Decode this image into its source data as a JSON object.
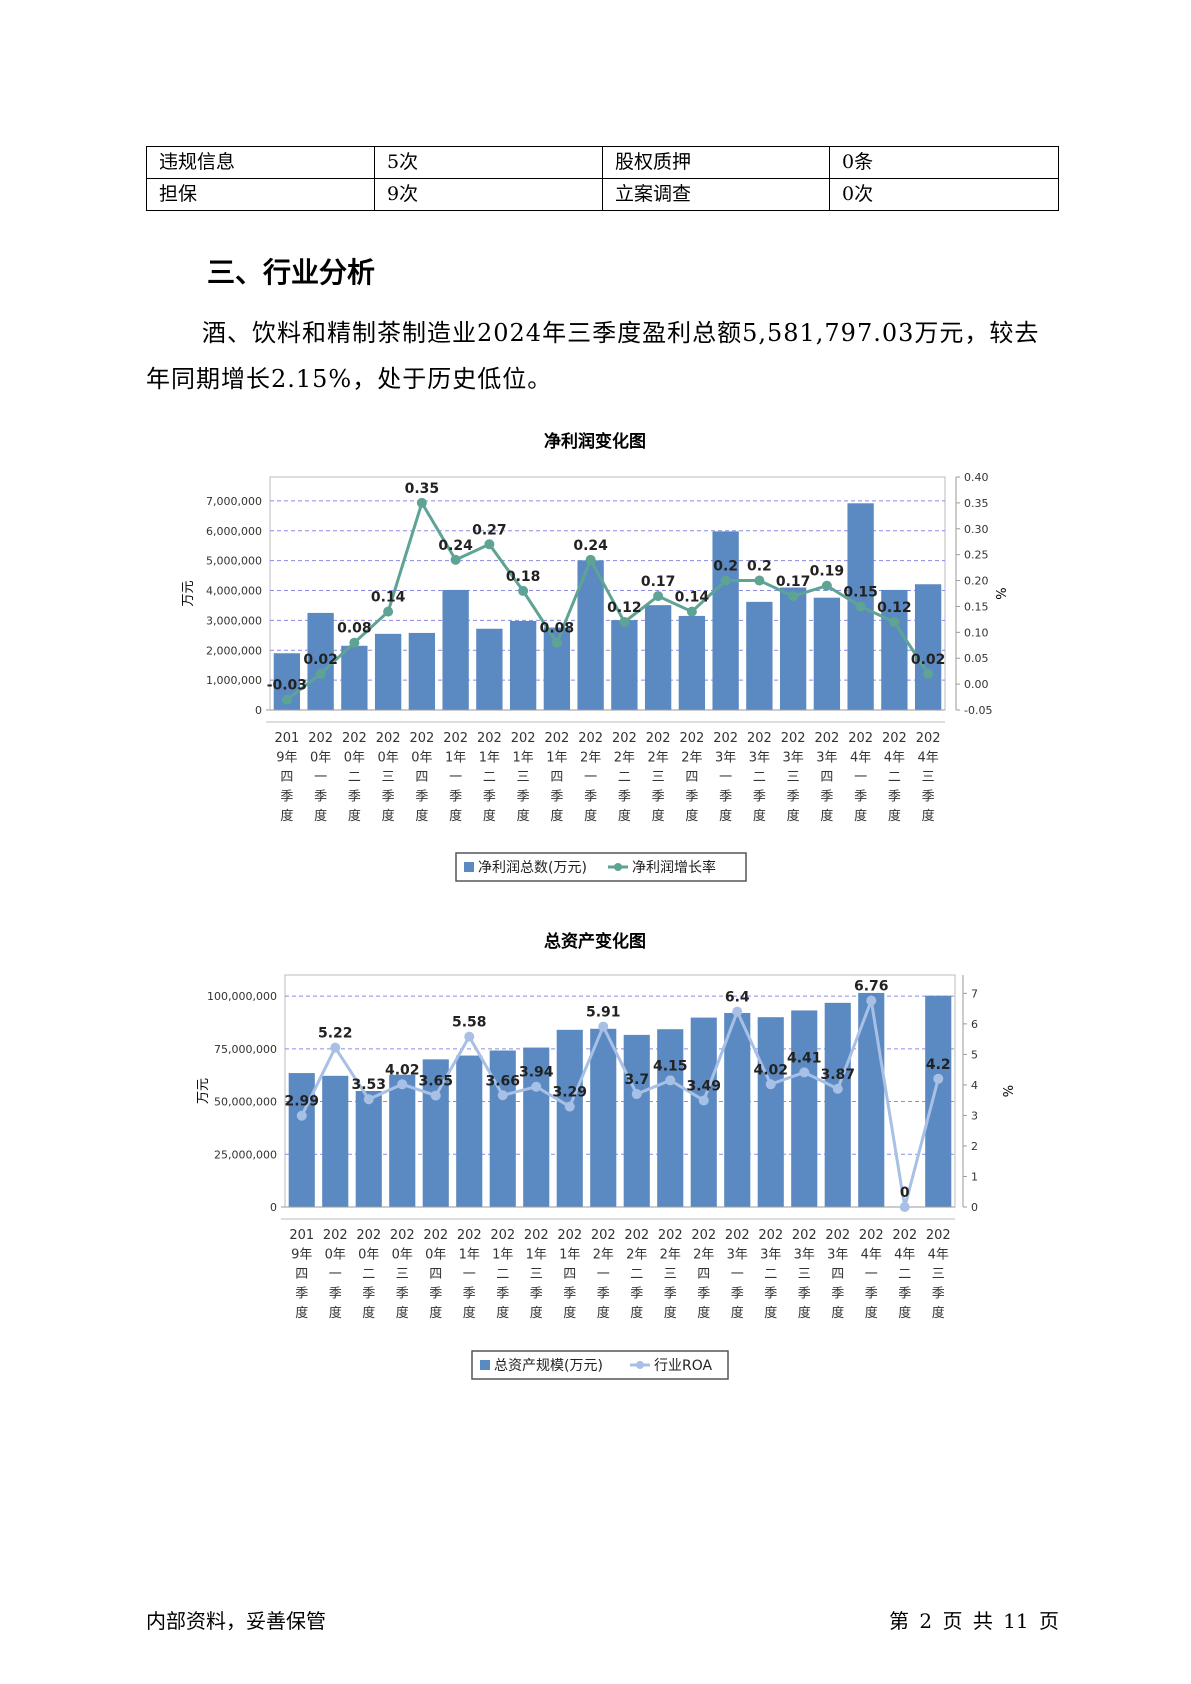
{
  "table": {
    "rows": [
      [
        "违规信息",
        "5次",
        "股权质押",
        "0条"
      ],
      [
        "担保",
        "9次",
        "立案调查",
        "0次"
      ]
    ]
  },
  "section_title": "三、行业分析",
  "paragraph": "酒、饮料和精制茶制造业2024年三季度盈利总额5,581,797.03万元，较去年同期增长2.15%，处于历史低位。",
  "footer": {
    "left": "内部资料，妥善保管",
    "right": "第 2 页  共 11 页"
  },
  "colors": {
    "bar": "#5b8ac2",
    "line1": "#5ea394",
    "line2": "#a8c0e6"
  },
  "chart_data": [
    {
      "type": "bar",
      "title": "净利润变化图",
      "ylabel": "万元",
      "y2label": "%",
      "ylim": [
        0,
        7800000
      ],
      "y2lim": [
        -0.05,
        0.4
      ],
      "yticks": [
        "0",
        "1,000,000",
        "2,000,000",
        "3,000,000",
        "4,000,000",
        "5,000,000",
        "6,000,000",
        "7,000,000"
      ],
      "y2ticks": [
        "-0.05",
        "0.00",
        "0.05",
        "0.10",
        "0.15",
        "0.20",
        "0.25",
        "0.30",
        "0.35",
        "0.40"
      ],
      "categories": [
        "2019年四季度",
        "2020年一季度",
        "2020年二季度",
        "2020年三季度",
        "2020年四季度",
        "2021年一季度",
        "2021年二季度",
        "2021年三季度",
        "2021年四季度",
        "2022年一季度",
        "2022年二季度",
        "2022年三季度",
        "2022年四季度",
        "2023年一季度",
        "2023年二季度",
        "2023年三季度",
        "2023年四季度",
        "2024年一季度",
        "2024年二季度",
        "2024年三季度"
      ],
      "series": [
        {
          "name": "净利润总数(万元)",
          "kind": "bar",
          "values": [
            1900000,
            3250000,
            2150000,
            2550000,
            2580000,
            4020000,
            2720000,
            2980000,
            2760000,
            5010000,
            3010000,
            3510000,
            3150000,
            5980000,
            3620000,
            4100000,
            3760000,
            6920000,
            4020000,
            4210000
          ]
        },
        {
          "name": "净利润增长率",
          "kind": "line",
          "values": [
            -0.03,
            0.02,
            0.08,
            0.14,
            0.35,
            0.24,
            0.27,
            0.18,
            0.08,
            0.24,
            0.12,
            0.17,
            0.14,
            0.2,
            0.2,
            0.17,
            0.19,
            0.15,
            0.12,
            0.02
          ]
        }
      ]
    },
    {
      "type": "bar",
      "title": "总资产变化图",
      "ylabel": "万元",
      "y2label": "%",
      "ylim": [
        0,
        110000000
      ],
      "y2lim": [
        0,
        7.6
      ],
      "yticks": [
        "0",
        "25,000,000",
        "50,000,000",
        "75,000,000",
        "100,000,000"
      ],
      "y2ticks": [
        "0",
        "1",
        "2",
        "3",
        "4",
        "5",
        "6",
        "7"
      ],
      "categories": [
        "2019年四季度",
        "2020年一季度",
        "2020年二季度",
        "2020年三季度",
        "2020年四季度",
        "2021年一季度",
        "2021年二季度",
        "2021年三季度",
        "2021年四季度",
        "2022年一季度",
        "2022年二季度",
        "2022年三季度",
        "2022年四季度",
        "2023年一季度",
        "2023年二季度",
        "2023年三季度",
        "2023年四季度",
        "2024年一季度",
        "2024年二季度",
        "2024年三季度"
      ],
      "series": [
        {
          "name": "总资产规模(万元)",
          "kind": "bar",
          "values": [
            63500000,
            62200000,
            55000000,
            62700000,
            70000000,
            71800000,
            74200000,
            75600000,
            84000000,
            84500000,
            81600000,
            84300000,
            89800000,
            92000000,
            90000000,
            93200000,
            96800000,
            101500000,
            0,
            100200000
          ]
        },
        {
          "name": "行业ROA",
          "kind": "line",
          "values": [
            2.99,
            5.22,
            3.53,
            4.02,
            3.65,
            5.58,
            3.66,
            3.94,
            3.29,
            5.91,
            3.7,
            4.15,
            3.49,
            6.4,
            4.02,
            4.41,
            3.87,
            6.76,
            0,
            4.2
          ]
        }
      ]
    }
  ]
}
